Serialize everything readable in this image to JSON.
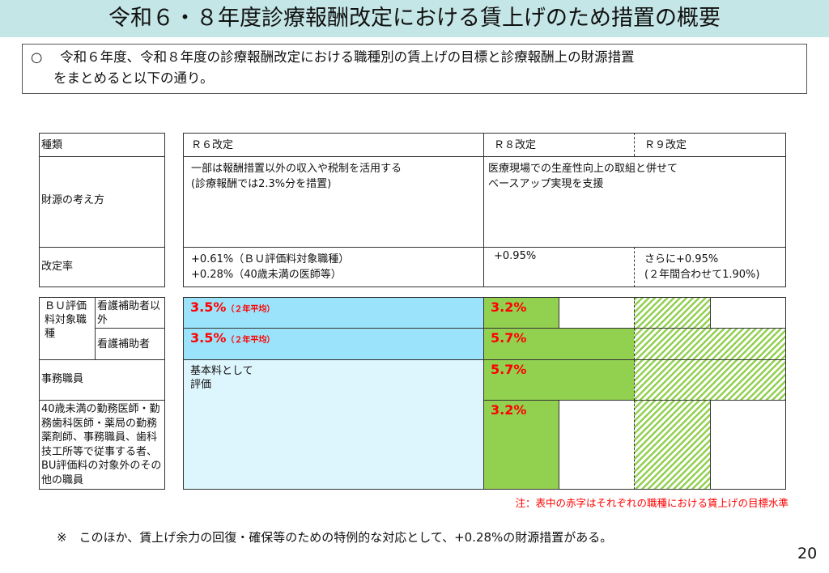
{
  "title": "令和６・８年度診療報酬改定における賃上げのため措置の概要",
  "intro": {
    "bullet": "○",
    "line1": "令和６年度、令和８年度の診療報酬改定における職種別の賃上げの目標と診療報酬上の財源措置",
    "line2": "をまとめると以下の通り。"
  },
  "left": {
    "type": "種類",
    "funding": "財源の考え方",
    "rate": "改定率",
    "bu": "ＢＵ評価料対象職種",
    "nonaide": "看護補助者以外",
    "aide": "看護補助者",
    "office": "事務職員",
    "others": "40歳未満の勤務医師・勤務歯科医師・薬局の勤務薬剤師、事務職員、歯科技工所等で従事する者、BU評価料の対象外のその他の職員"
  },
  "cols": {
    "r6": "Ｒ６改定",
    "r8": "Ｒ８改定",
    "r9": "Ｒ９改定"
  },
  "funding": {
    "r6_1": "一部は報酬措置以外の収入や税制を活用する",
    "r6_2": "(診療報酬では2.3%分を措置)",
    "r8_1": "医療現場での生産性向上の取組と併せて",
    "r8_2": "ベースアップ実現を支援"
  },
  "rate": {
    "r6_1": "+0.61%（ＢＵ評価料対象職種）",
    "r6_2": "+0.28%（40歳未満の医師等）",
    "r8": "+0.95%",
    "r9_1": "さらに+0.95%",
    "r9_2": "(２年間合わせて1.90%)"
  },
  "targets": {
    "r6_nonaide": "3.5%",
    "r6_aide": "3.5%",
    "avg": "（２年平均）",
    "r6_basic_1": "基本料として",
    "r6_basic_2": "評価",
    "r8_nonaide": "3.2%",
    "r8_aide": "5.7%",
    "r8_office": "5.7%",
    "r8_others": "3.2%"
  },
  "note": "注：表中の赤字はそれぞれの職種における賃上げの目標水準",
  "footnote": "※　このほか、賃上げ余力の回復・確保等のための特例的な対応として、+0.28%の財源措置がある。",
  "page_number": "20",
  "colors": {
    "title_bg": "#c5e6e6",
    "r6_bu": "#9ae3fb",
    "r6_other": "#ddf5fd",
    "r8_fill": "#92d050",
    "target_text": "#ff0000"
  }
}
